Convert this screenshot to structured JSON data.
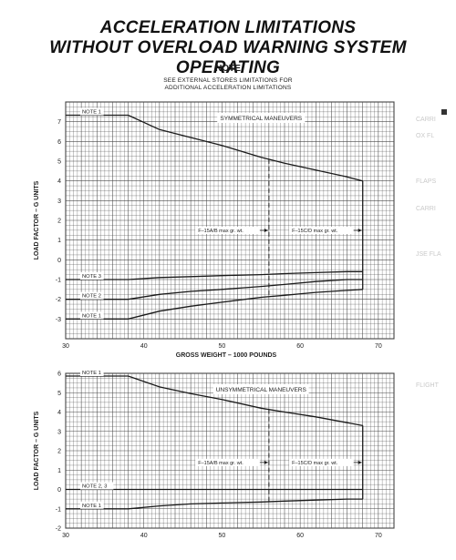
{
  "header": {
    "title_line1": "ACCELERATION LIMITATIONS",
    "title_line2": "WITHOUT OVERLOAD WARNING SYSTEM OPERATING",
    "note_heading": "NOTE",
    "note_line1": "SEE EXTERNAL STORES LIMITATIONS FOR",
    "note_line2": "ADDITIONAL ACCELERATION LIMITATIONS"
  },
  "bleed_through": {
    "items": [
      "CARRI",
      "OX FL",
      "FLAPS",
      "CARRI",
      "JSE FLA",
      "FLIGHT"
    ]
  },
  "colors": {
    "ink": "#1a1a1a",
    "grid": "#4a4a4a",
    "paper": "#ffffff"
  },
  "chart_data": [
    {
      "type": "line",
      "title": "SYMMETRICAL MANEUVERS",
      "xlabel": "GROSS WEIGHT – 1000 POUNDS",
      "ylabel": "LOAD FACTOR – G UNITS",
      "xlim": [
        30,
        72
      ],
      "ylim": [
        -4,
        8
      ],
      "xticks": [
        30,
        40,
        50,
        60,
        70
      ],
      "yticks": [
        -3,
        -2,
        -1,
        0,
        1,
        2,
        3,
        4,
        5,
        6,
        7
      ],
      "grid": true,
      "series": [
        {
          "label": "NOTE 1",
          "x": [
            30,
            38,
            42,
            46,
            50,
            55,
            58,
            62,
            66,
            68
          ],
          "y": [
            7.33,
            7.33,
            6.6,
            6.2,
            5.8,
            5.2,
            4.9,
            4.55,
            4.2,
            4.0
          ]
        },
        {
          "label": "NOTE 3",
          "x": [
            30,
            38,
            42,
            46,
            50,
            55,
            58,
            62,
            66,
            68
          ],
          "y": [
            -1.0,
            -1.0,
            -0.9,
            -0.85,
            -0.8,
            -0.75,
            -0.7,
            -0.65,
            -0.6,
            -0.6
          ]
        },
        {
          "label": "NOTE 2",
          "x": [
            30,
            38,
            42,
            46,
            50,
            55,
            58,
            62,
            66,
            68
          ],
          "y": [
            -2.0,
            -2.0,
            -1.75,
            -1.6,
            -1.5,
            -1.35,
            -1.25,
            -1.1,
            -1.0,
            -1.0
          ]
        },
        {
          "label": "NOTE 1",
          "x": [
            30,
            38,
            42,
            46,
            50,
            55,
            58,
            62,
            66,
            68
          ],
          "y": [
            -3.0,
            -3.0,
            -2.6,
            -2.35,
            -2.15,
            -1.9,
            -1.8,
            -1.65,
            -1.55,
            -1.5
          ]
        }
      ],
      "vertical_markers": [
        {
          "x": 56,
          "style": "dashed",
          "label": "F–15A/B max gr. wt.",
          "label_y": 1.4
        },
        {
          "x": 68,
          "style": "solid",
          "label": "F–15C/D max gr. wt.",
          "label_y": 1.4
        }
      ]
    },
    {
      "type": "line",
      "title": "UNSYMMETRICAL MANEUVERS",
      "xlabel": "",
      "ylabel": "LOAD FACTOR – G UNITS",
      "xlim": [
        30,
        72
      ],
      "ylim": [
        -2,
        6
      ],
      "xticks": [
        30,
        40,
        50,
        60,
        70
      ],
      "yticks": [
        -2,
        -1,
        0,
        1,
        2,
        3,
        4,
        5,
        6
      ],
      "grid": true,
      "series": [
        {
          "label": "NOTE 1",
          "x": [
            30,
            38,
            42,
            46,
            50,
            55,
            58,
            62,
            66,
            68
          ],
          "y": [
            5.86,
            5.86,
            5.3,
            4.95,
            4.65,
            4.2,
            4.0,
            3.75,
            3.45,
            3.3
          ]
        },
        {
          "label": "NOTE 2, 3",
          "x": [
            30,
            68
          ],
          "y": [
            0.0,
            0.0
          ]
        },
        {
          "label": "NOTE 1",
          "x": [
            30,
            38,
            42,
            46,
            50,
            55,
            58,
            62,
            66,
            68
          ],
          "y": [
            -1.0,
            -1.0,
            -0.85,
            -0.75,
            -0.7,
            -0.65,
            -0.6,
            -0.55,
            -0.5,
            -0.5
          ]
        }
      ],
      "vertical_markers": [
        {
          "x": 56,
          "style": "dashed",
          "label": "F–15A/B max gr. wt.",
          "label_y": 1.3
        },
        {
          "x": 68,
          "style": "solid",
          "label": "F–15C/D max gr. wt.",
          "label_y": 1.3
        }
      ]
    }
  ]
}
